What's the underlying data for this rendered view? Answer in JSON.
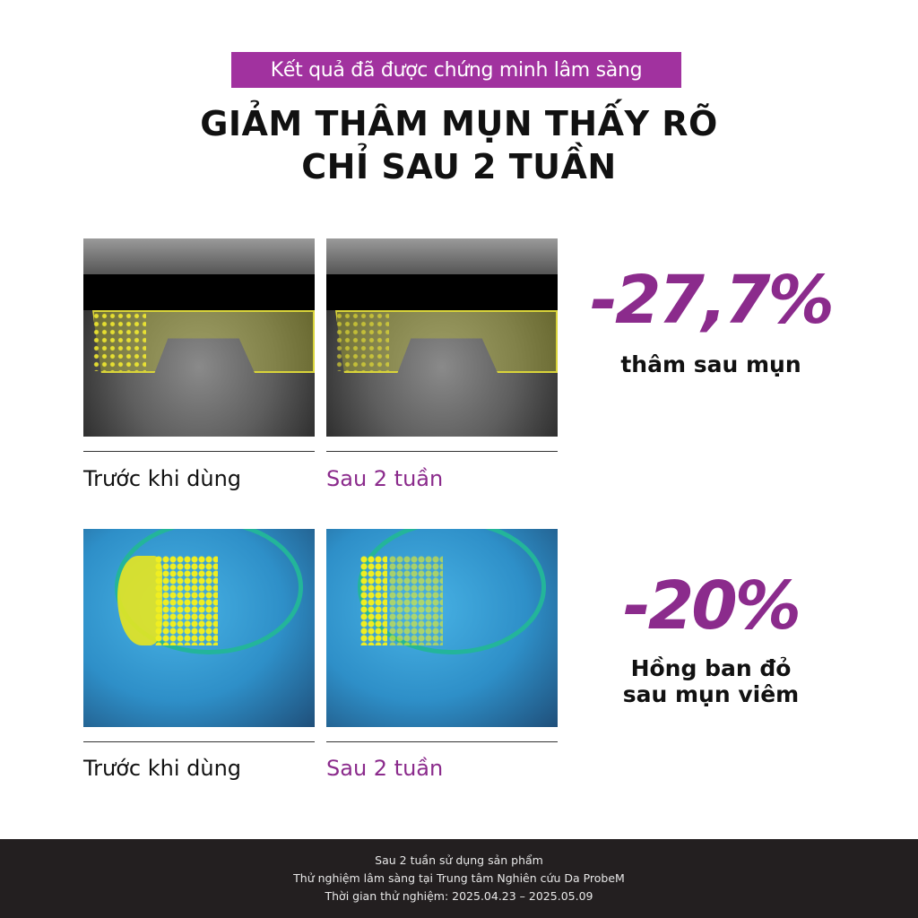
{
  "badge": "Kết quả đã được chứng minh lâm sàng",
  "title": {
    "line1": "GIẢM THÂM MỤN THẤY RÕ",
    "line2": "CHỈ SAU 2 TUẦN"
  },
  "row1": {
    "before_caption": "Trước khi dùng",
    "after_caption": "Sau 2 tuần",
    "stat": "-27,7%",
    "stat_label": "thâm sau mụn"
  },
  "row2": {
    "before_caption": "Trước khi dùng",
    "after_caption": "Sau 2 tuần",
    "stat": "-20%",
    "stat_label_line1": "Hồng ban đỏ",
    "stat_label_line2": "sau mụn viêm"
  },
  "footer": {
    "line1": "Sau 2 tuần sử dụng sản phẩm",
    "line2": "Thử nghiệm lâm sàng tại Trung tâm Nghiên cứu Da ProbeM",
    "line3": "Thời gian thử nghiệm: 2025.04.23 – 2025.05.09"
  },
  "colors": {
    "accent": "#8b2b8c",
    "badge": "#a1329f",
    "footer": "#231f20"
  }
}
